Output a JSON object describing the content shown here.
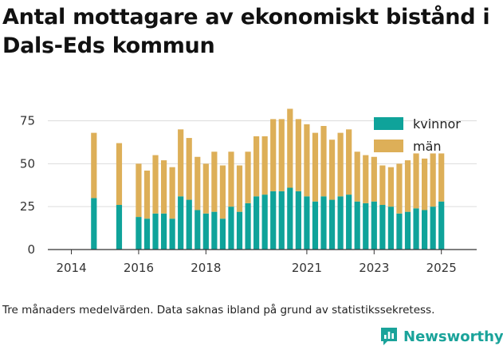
{
  "title": "Antal mottagare av ekonomiskt bistånd i Dals-Eds kommun",
  "footnote": "Tre månaders medelvärden. Data saknas ibland på grund av statistikssekretess.",
  "brand": {
    "name": "Newsworthy",
    "icon": "newsworthy-logo-icon",
    "color": "#1aa39a"
  },
  "colors": {
    "kvinnor": "#0fa39a",
    "man": "#ddaf58",
    "axis": "#333333",
    "grid": "#dcdcdc"
  },
  "chart_data": {
    "type": "bar",
    "stacked": true,
    "title": "",
    "xlabel": "",
    "ylabel": "",
    "ylim": [
      0,
      85
    ],
    "yticks": [
      0,
      25,
      50,
      75
    ],
    "xlim": [
      2013.3,
      2026.05
    ],
    "xticks": [
      2014,
      2016,
      2018,
      2021,
      2023,
      2025
    ],
    "grid": true,
    "legend": "top-right",
    "x": [
      2014.67,
      2015.42,
      2016.0,
      2016.25,
      2016.5,
      2016.75,
      2017.0,
      2017.25,
      2017.5,
      2017.75,
      2018.0,
      2018.25,
      2018.5,
      2018.75,
      2019.0,
      2019.25,
      2019.5,
      2019.75,
      2020.0,
      2020.25,
      2020.5,
      2020.75,
      2021.0,
      2021.25,
      2021.5,
      2021.75,
      2022.0,
      2022.25,
      2022.5,
      2022.75,
      2023.0,
      2023.25,
      2023.5,
      2023.75,
      2024.0,
      2024.25,
      2024.5,
      2024.75,
      2025.0,
      2025.25
    ],
    "series": [
      {
        "name": "kvinnor",
        "values": [
          30,
          26,
          19,
          18,
          21,
          21,
          18,
          31,
          29,
          23,
          21,
          22,
          18,
          25,
          22,
          27,
          31,
          32,
          34,
          34,
          36,
          34,
          31,
          28,
          31,
          29,
          31,
          32,
          28,
          27,
          28,
          26,
          25,
          21,
          22,
          24,
          23,
          25,
          28,
          0
        ]
      },
      {
        "name": "män",
        "values": [
          38,
          36,
          31,
          28,
          34,
          31,
          30,
          39,
          36,
          31,
          29,
          35,
          31,
          32,
          27,
          30,
          35,
          34,
          42,
          42,
          46,
          42,
          42,
          40,
          41,
          35,
          37,
          38,
          29,
          28,
          26,
          23,
          23,
          29,
          30,
          32,
          30,
          31,
          28,
          0
        ]
      }
    ]
  }
}
